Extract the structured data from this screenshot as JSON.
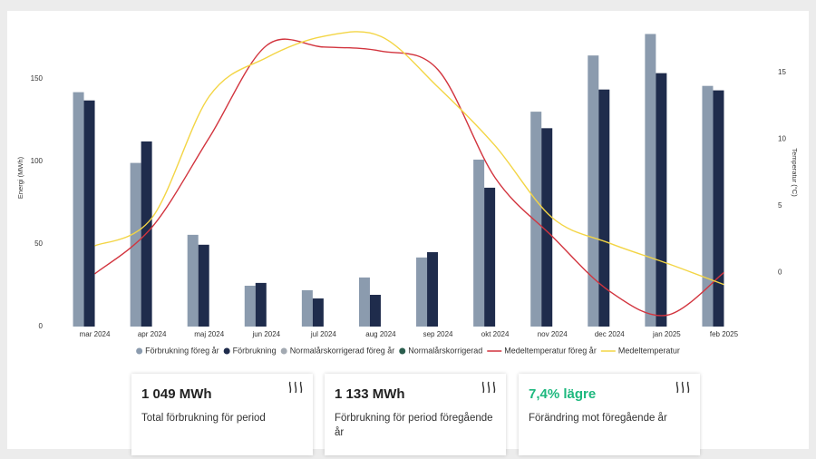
{
  "chart_data": {
    "type": "bar",
    "categories": [
      "mar 2024",
      "apr 2024",
      "maj 2024",
      "jun 2024",
      "jul 2024",
      "aug 2024",
      "sep 2024",
      "okt 2024",
      "nov 2024",
      "dec 2024",
      "jan 2025",
      "feb 2025"
    ],
    "series": [
      {
        "name": "Förbrukning föreg år",
        "color": "#8b9bae",
        "type": "bar",
        "values": [
          141.8,
          99,
          55.5,
          24.7,
          22,
          29.7,
          41.8,
          101,
          130,
          164,
          177,
          145.6
        ]
      },
      {
        "name": "Förbrukning",
        "color": "#1f2c4c",
        "type": "bar",
        "values": [
          136.8,
          112,
          49.5,
          26.4,
          17,
          19.2,
          45,
          84,
          120,
          143.4,
          153.3,
          142.9
        ]
      },
      {
        "name": "Normalårskorrigerad föreg år",
        "color": "#a3aab2",
        "type": "bar",
        "values": [
          null,
          null,
          null,
          null,
          null,
          null,
          null,
          null,
          null,
          null,
          null,
          null
        ]
      },
      {
        "name": "Normalårskorrigerad",
        "color": "#2b5e4e",
        "type": "bar",
        "values": [
          null,
          null,
          null,
          null,
          null,
          null,
          null,
          null,
          null,
          null,
          null,
          null
        ]
      },
      {
        "name": "Medeltemperatur föreg år",
        "color": "#d2343e",
        "type": "line",
        "axis": "y2",
        "values": [
          -0.1,
          3.4,
          10.1,
          17.0,
          16.9,
          16.6,
          15.2,
          7.1,
          2.7,
          -1.4,
          -3.2,
          0
        ]
      },
      {
        "name": "Medeltemperatur",
        "color": "#f3d545",
        "type": "line",
        "axis": "y2",
        "values": [
          2.0,
          4.1,
          13.2,
          16.1,
          17.7,
          17.7,
          13.9,
          9.5,
          4.1,
          2.2,
          0.7,
          -0.9
        ]
      }
    ],
    "y_label": "Energi (MWh)",
    "y2_label": "Temperatur (°C)",
    "ylim": [
      0,
      180
    ],
    "yticks": [
      0,
      50,
      100,
      150
    ],
    "y2lim": [
      -4.05,
      18.25
    ],
    "y2ticks": [
      0,
      5,
      10,
      15
    ],
    "grid": false,
    "legend": "bottom"
  },
  "cards": [
    {
      "value": "1 049 MWh",
      "label": "Total förbrukning för period"
    },
    {
      "value": "1 133 MWh",
      "label": "Förbrukning för period föregående år"
    },
    {
      "value": "7,4% lägre",
      "label": "Förändring mot föregående år"
    }
  ]
}
